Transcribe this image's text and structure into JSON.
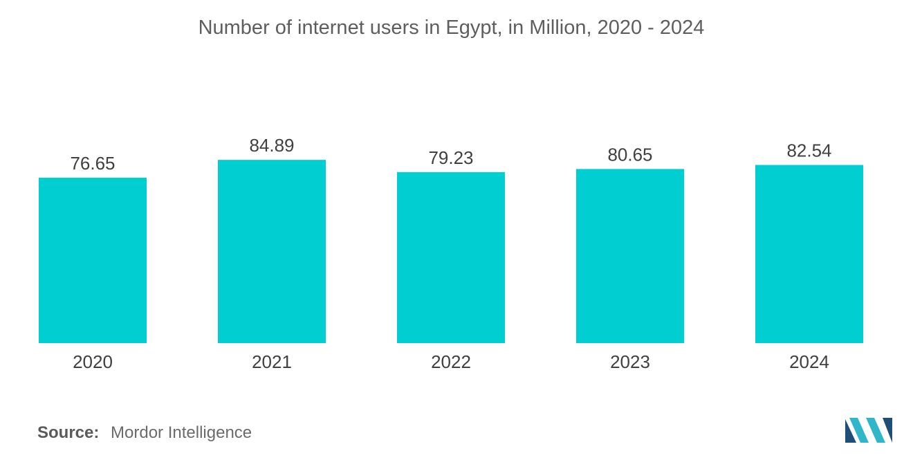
{
  "chart_data": {
    "type": "bar",
    "title": "Number of internet users in Egypt, in Million, 2020 - 2024",
    "categories": [
      "2020",
      "2021",
      "2022",
      "2023",
      "2024"
    ],
    "values": [
      76.65,
      84.89,
      79.23,
      80.65,
      82.54
    ],
    "data_labels": [
      "76.65",
      "84.89",
      "79.23",
      "80.65",
      "82.54"
    ],
    "xlabel": "",
    "ylabel": "",
    "ylim": [
      0,
      100
    ],
    "grid": false,
    "legend": "none",
    "colors": {
      "bar": "#00CED1"
    }
  },
  "source": {
    "label": "Source:",
    "value": "Mordor Intelligence"
  },
  "logo": {
    "name": "mordor-intelligence-logo",
    "colors": [
      "#1f4e79",
      "#2fb6c8"
    ]
  }
}
